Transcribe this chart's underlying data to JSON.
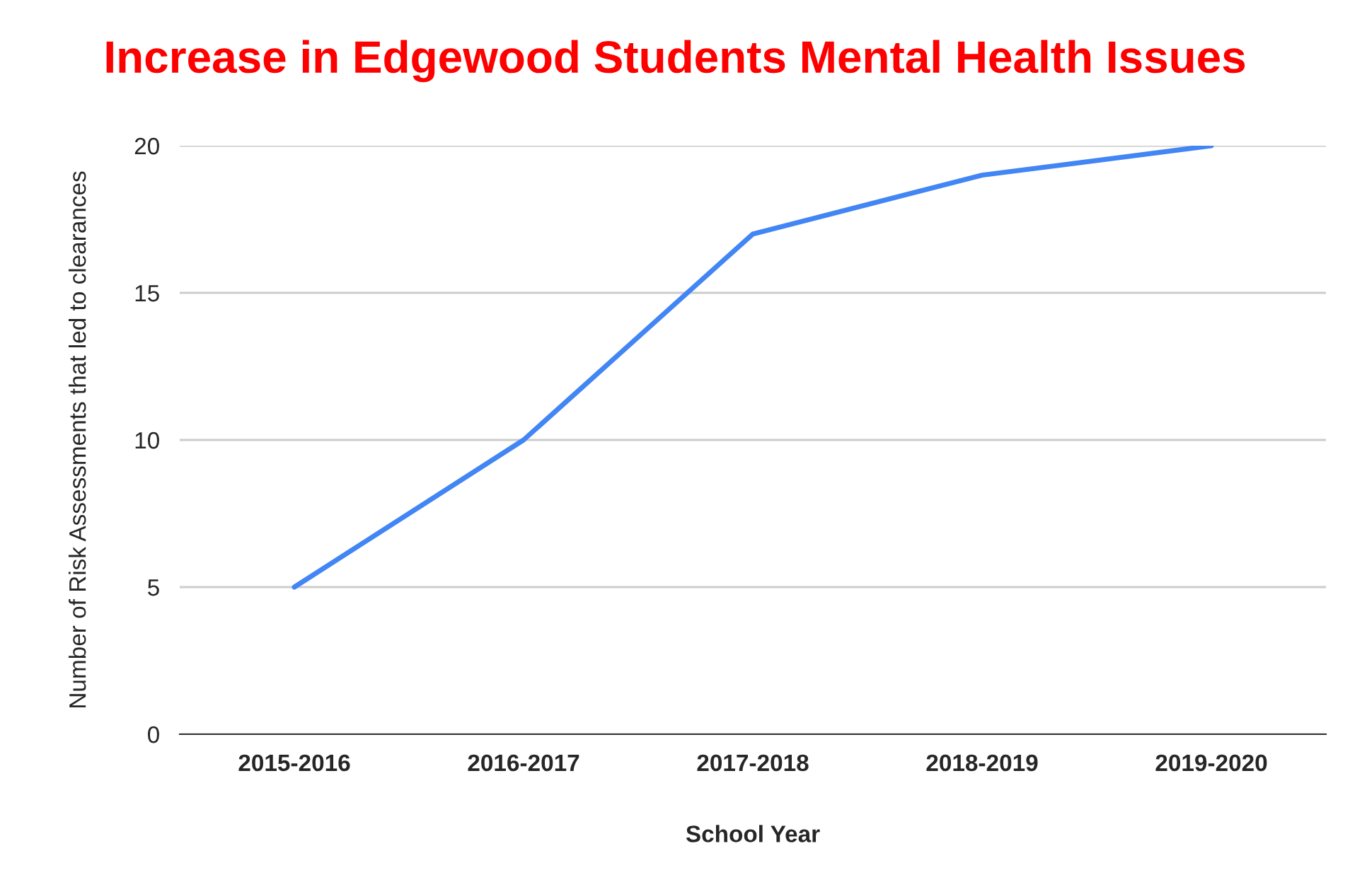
{
  "chart_data": {
    "type": "line",
    "title": "Increase in Edgewood Students Mental Health Issues",
    "xlabel": "School Year",
    "ylabel": "Number of Risk Assessments that led to clearances",
    "categories": [
      "2015-2016",
      "2016-2017",
      "2017-2018",
      "2018-2019",
      "2019-2020"
    ],
    "series": [
      {
        "color": "#4285f4",
        "values": [
          5,
          10,
          17,
          19,
          20
        ]
      }
    ],
    "ylim": [
      0,
      20
    ],
    "yticks": [
      0,
      5,
      10,
      15,
      20
    ],
    "grid": "y",
    "marker": "none",
    "line_style": "solid"
  }
}
